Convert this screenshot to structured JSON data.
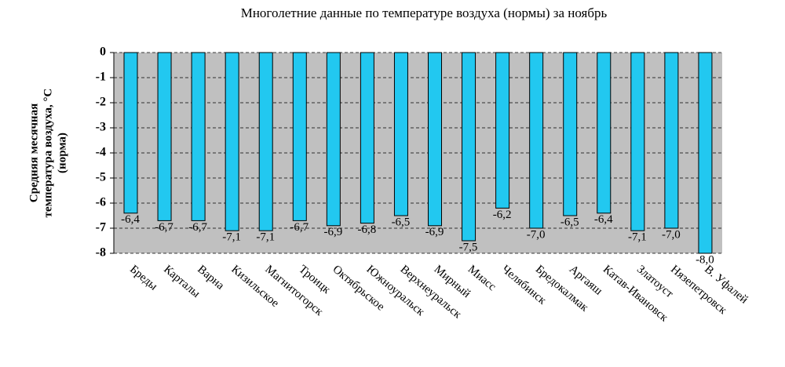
{
  "chart_data": {
    "type": "bar",
    "title": "Многолетние данные по температуре воздуха (нормы) за ноябрь",
    "y_label": [
      "Средняя месячная",
      "температура воздуха, °С",
      "(норма)"
    ],
    "categories": [
      "Бреды",
      "Карталы",
      "Варна",
      "Кизильское",
      "Магнитогорск",
      "Троицк",
      "Октябрьское",
      "Южноуральск",
      "Верхнеуральск",
      "Мирный",
      "Миасс",
      "Челябинск",
      "Бредокалмак",
      "Аргаяш",
      "Катав-Ивановск",
      "Златоуст",
      "Нязепетровск",
      "В. Уфалей"
    ],
    "values": [
      -6.4,
      -6.7,
      -6.7,
      -7.1,
      -7.1,
      -6.7,
      -6.9,
      -6.8,
      -6.5,
      -6.9,
      -7.5,
      -6.2,
      -7.0,
      -6.5,
      -6.4,
      -7.1,
      -7.0,
      -8.0
    ],
    "value_labels": [
      "-6,4",
      "-6,7",
      "-6,7",
      "-7,1",
      "-7,1",
      "-6,7",
      "-6,9",
      "-6,8",
      "-6,5",
      "-6,9",
      "-7,5",
      "-6,2",
      "-7,0",
      "-6,5",
      "-6,4",
      "-7,1",
      "-7,0",
      "-8,0"
    ],
    "color": "#22c8f0",
    "ylim": [
      -8,
      0
    ],
    "yticks": [
      0,
      -1,
      -2,
      -3,
      -4,
      -5,
      -6,
      -7,
      -8
    ],
    "grid": true
  }
}
